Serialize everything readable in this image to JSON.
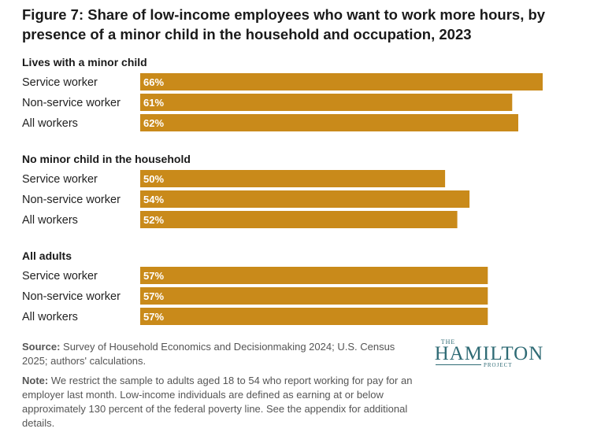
{
  "title": "Figure 7: Share of low-income employees who want to work more hours, by presence of a minor child in the household and occupation, 2023",
  "colors": {
    "bar": "#c98a1a",
    "value_text": "#ffffff"
  },
  "chart_data": {
    "type": "bar",
    "orientation": "horizontal",
    "title": "Figure 7: Share of low-income employees who want to work more hours, by presence of a minor child in the household and occupation, 2023",
    "xlim": [
      0,
      100
    ],
    "grid": false,
    "groups": [
      {
        "name": "Lives with a minor child",
        "bars": [
          {
            "label": "Service worker",
            "value": 66,
            "value_label": "66%"
          },
          {
            "label": "Non-service worker",
            "value": 61,
            "value_label": "61%"
          },
          {
            "label": "All workers",
            "value": 62,
            "value_label": "62%"
          }
        ]
      },
      {
        "name": "No minor child in the household",
        "bars": [
          {
            "label": "Service worker",
            "value": 50,
            "value_label": "50%"
          },
          {
            "label": "Non-service worker",
            "value": 54,
            "value_label": "54%"
          },
          {
            "label": "All workers",
            "value": 52,
            "value_label": "52%"
          }
        ]
      },
      {
        "name": "All adults",
        "bars": [
          {
            "label": "Service worker",
            "value": 57,
            "value_label": "57%"
          },
          {
            "label": "Non-service worker",
            "value": 57,
            "value_label": "57%"
          },
          {
            "label": "All workers",
            "value": 57,
            "value_label": "57%"
          }
        ]
      }
    ]
  },
  "source": {
    "label": "Source:",
    "text": " Survey of Household Economics and Decisionmaking 2024; U.S. Census 2025; authors' calculations."
  },
  "note": {
    "label": "Note:",
    "text": " We restrict the sample to adults aged 18 to 54 who report working for pay for an employer last month. Low-income individuals are defined as earning at or below approximately 130 percent of the federal poverty line. See the appendix for additional details."
  },
  "logo": {
    "the": "THE",
    "name": "HAMILTON",
    "project": "PROJECT"
  }
}
